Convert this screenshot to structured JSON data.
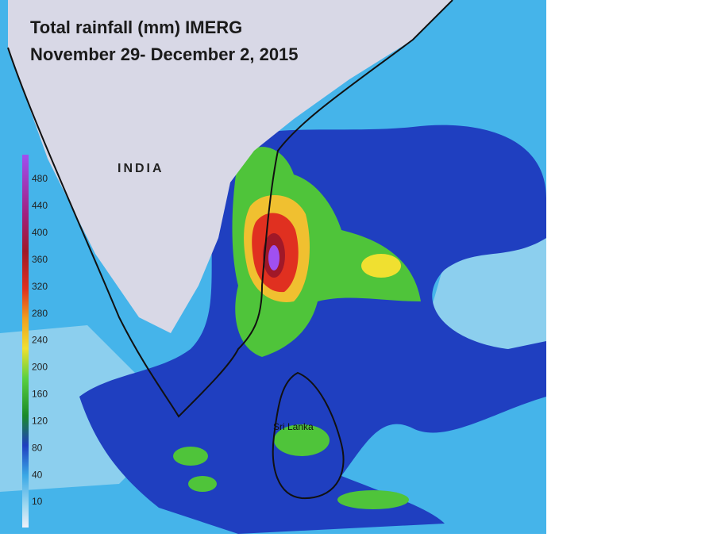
{
  "title": "Total rainfall (mm) IMERG",
  "subtitle": "November 29- December 2, 2015",
  "labels": {
    "india": "INDIA",
    "sri_lanka": "Sri Lanka"
  },
  "legend": {
    "ticks": [
      480,
      440,
      400,
      360,
      320,
      280,
      240,
      200,
      160,
      120,
      80,
      40,
      10
    ]
  }
}
